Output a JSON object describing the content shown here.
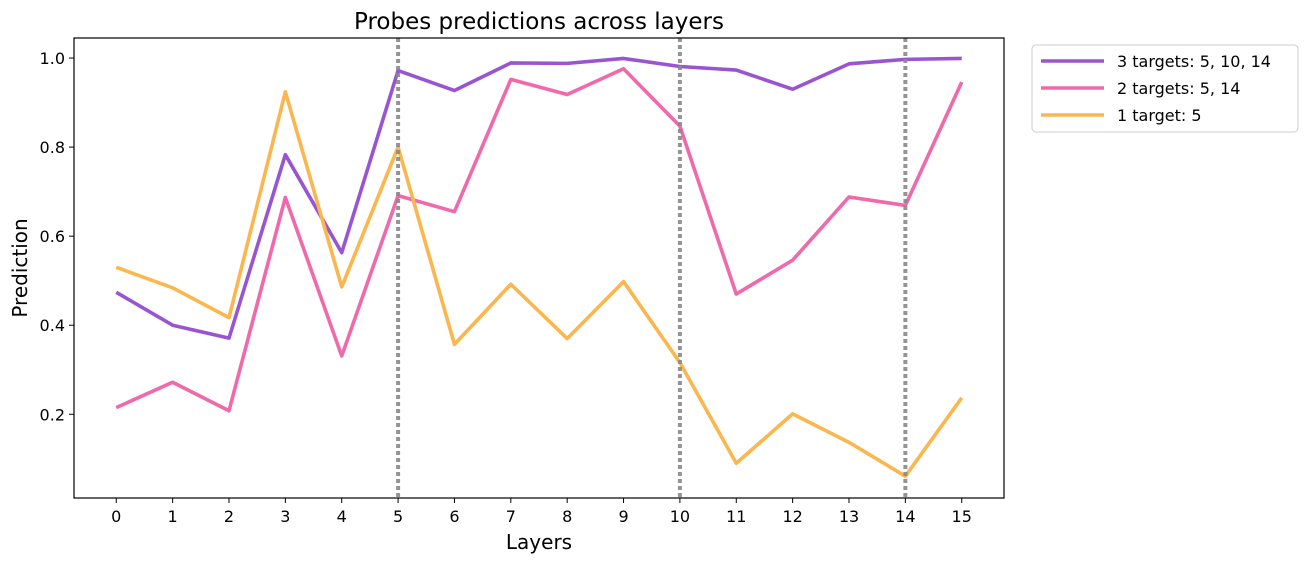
{
  "chart_data": {
    "type": "line",
    "title": "Probes predictions across layers",
    "xlabel": "Layers",
    "ylabel": "Prediction",
    "x": [
      0,
      1,
      2,
      3,
      4,
      5,
      6,
      7,
      8,
      9,
      10,
      11,
      12,
      13,
      14,
      15
    ],
    "xlim": [
      -0.75,
      15.75
    ],
    "ylim": [
      0.012,
      1.045
    ],
    "yticks": [
      0.2,
      0.4,
      0.6,
      0.8,
      1.0
    ],
    "ytick_labels": [
      "0.2",
      "0.4",
      "0.6",
      "0.8",
      "1.0"
    ],
    "grid": false,
    "legend_position": "outside-right-top",
    "vlines": [
      5,
      10,
      14
    ],
    "vline_color": "#888888",
    "series": [
      {
        "name": "3 targets: 5, 10, 14",
        "color": "#9955d1",
        "values": [
          0.474,
          0.4,
          0.371,
          0.783,
          0.563,
          0.972,
          0.927,
          0.989,
          0.988,
          0.999,
          0.981,
          0.973,
          0.93,
          0.987,
          0.997,
          0.999
        ]
      },
      {
        "name": "2 targets: 5, 14",
        "color": "#ef69ab",
        "values": [
          0.215,
          0.272,
          0.208,
          0.687,
          0.331,
          0.691,
          0.655,
          0.952,
          0.918,
          0.976,
          0.847,
          0.47,
          0.546,
          0.688,
          0.669,
          0.946
        ]
      },
      {
        "name": "1 target: 5",
        "color": "#fbb64d",
        "values": [
          0.53,
          0.484,
          0.417,
          0.924,
          0.486,
          0.8,
          0.357,
          0.492,
          0.37,
          0.498,
          0.316,
          0.09,
          0.201,
          0.137,
          0.061,
          0.237
        ]
      }
    ]
  }
}
